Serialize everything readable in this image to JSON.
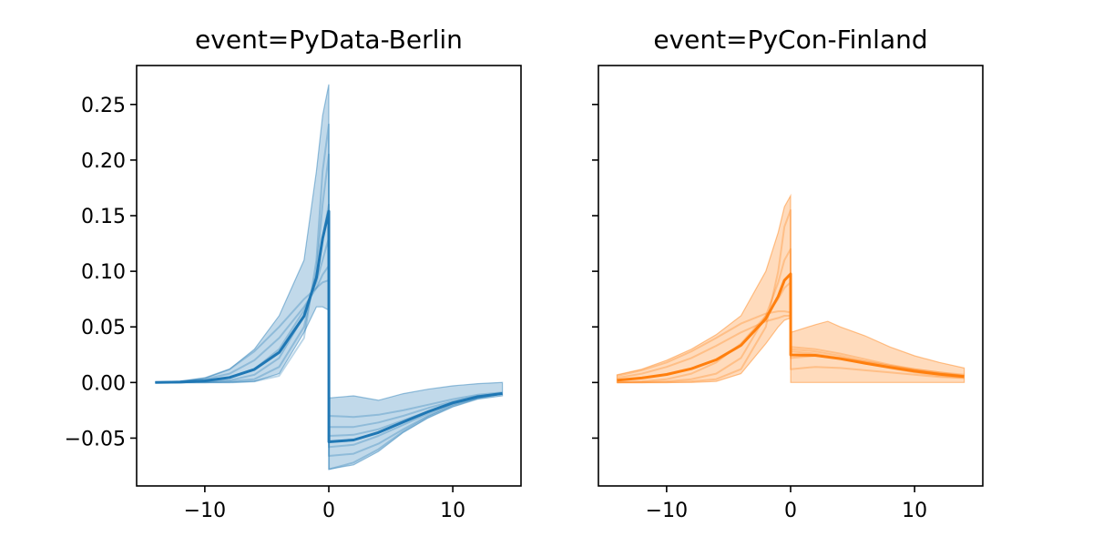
{
  "chart_data": [
    {
      "type": "line",
      "title": "event=PyData-Berlin",
      "xlabel": "",
      "ylabel": "",
      "xlim": [
        -15.5,
        15.5
      ],
      "ylim": [
        -0.093,
        0.285
      ],
      "xticks": [
        -10,
        0,
        10
      ],
      "xtick_labels": [
        "−10",
        "0",
        "10"
      ],
      "yticks": [
        -0.05,
        0.0,
        0.05,
        0.1,
        0.15,
        0.2,
        0.25
      ],
      "ytick_labels": [
        "−0.05",
        "0.00",
        "0.05",
        "0.10",
        "0.15",
        "0.20",
        "0.25"
      ],
      "color": "#1f77b4",
      "band": {
        "x": [
          -14,
          -12,
          -10,
          -8,
          -6,
          -4,
          -2,
          -1,
          -0.5,
          0,
          0.01,
          2,
          4,
          6,
          8,
          10,
          12,
          14
        ],
        "upper": [
          0.0,
          0.001,
          0.004,
          0.012,
          0.03,
          0.06,
          0.11,
          0.19,
          0.24,
          0.268,
          -0.014,
          -0.012,
          -0.016,
          -0.01,
          -0.006,
          -0.003,
          -0.001,
          0.0
        ],
        "lower": [
          0.0,
          0.0,
          0.0,
          0.0,
          0.001,
          0.008,
          0.045,
          0.068,
          0.068,
          0.065,
          -0.078,
          -0.074,
          -0.062,
          -0.045,
          -0.032,
          -0.022,
          -0.015,
          -0.012
        ]
      },
      "series": [
        {
          "x": [
            -14,
            -12,
            -10,
            -8,
            -6,
            -4,
            -2,
            -1,
            -0.5,
            0,
            0.01,
            2,
            4,
            6,
            8,
            10,
            12,
            14
          ],
          "values": [
            0.0,
            0.0,
            0.0,
            0.0,
            0.001,
            0.006,
            0.04,
            0.11,
            0.19,
            0.232,
            -0.078,
            -0.072,
            -0.06,
            -0.044,
            -0.031,
            -0.021,
            -0.014,
            -0.01
          ]
        },
        {
          "x": [
            -14,
            -12,
            -10,
            -8,
            -6,
            -4,
            -2,
            -1,
            -0.5,
            0,
            0.01,
            2,
            4,
            6,
            8,
            10,
            12,
            14
          ],
          "values": [
            0.0,
            0.0,
            0.0,
            0.001,
            0.003,
            0.014,
            0.05,
            0.1,
            0.16,
            0.205,
            -0.066,
            -0.064,
            -0.055,
            -0.042,
            -0.03,
            -0.02,
            -0.014,
            -0.01
          ]
        },
        {
          "x": [
            -14,
            -12,
            -10,
            -8,
            -6,
            -4,
            -2,
            -1,
            -0.5,
            0,
            0.01,
            2,
            4,
            6,
            8,
            10,
            12,
            14
          ],
          "values": [
            0.0,
            0.0,
            0.001,
            0.002,
            0.007,
            0.022,
            0.06,
            0.095,
            0.13,
            0.16,
            -0.058,
            -0.056,
            -0.048,
            -0.038,
            -0.028,
            -0.019,
            -0.013,
            -0.01
          ]
        },
        {
          "x": [
            -14,
            -12,
            -10,
            -8,
            -6,
            -4,
            -2,
            -1,
            -0.5,
            0,
            0.01,
            2,
            4,
            6,
            8,
            10,
            12,
            14
          ],
          "values": [
            0.0,
            0.0,
            0.001,
            0.004,
            0.012,
            0.03,
            0.065,
            0.09,
            0.11,
            0.13,
            -0.048,
            -0.047,
            -0.042,
            -0.034,
            -0.026,
            -0.018,
            -0.013,
            -0.01
          ]
        },
        {
          "x": [
            -14,
            -12,
            -10,
            -8,
            -6,
            -4,
            -2,
            -1,
            -0.5,
            0,
            0.01,
            2,
            4,
            6,
            8,
            10,
            12,
            14
          ],
          "values": [
            0.0,
            0.001,
            0.003,
            0.008,
            0.02,
            0.04,
            0.068,
            0.085,
            0.097,
            0.105,
            -0.04,
            -0.04,
            -0.036,
            -0.03,
            -0.023,
            -0.017,
            -0.012,
            -0.01
          ]
        },
        {
          "x": [
            -14,
            -12,
            -10,
            -8,
            -6,
            -4,
            -2,
            -1,
            -0.5,
            0,
            0.01,
            2,
            4,
            6,
            8,
            10,
            12,
            14
          ],
          "values": [
            0.0,
            0.001,
            0.004,
            0.012,
            0.028,
            0.05,
            0.075,
            0.085,
            0.09,
            0.092,
            -0.03,
            -0.031,
            -0.029,
            -0.025,
            -0.02,
            -0.015,
            -0.011,
            -0.009
          ]
        }
      ]
    },
    {
      "type": "line",
      "title": "event=PyCon-Finland",
      "xlabel": "",
      "ylabel": "",
      "xlim": [
        -15.5,
        15.5
      ],
      "ylim": [
        -0.093,
        0.285
      ],
      "xticks": [
        -10,
        0,
        10
      ],
      "xtick_labels": [
        "−10",
        "0",
        "10"
      ],
      "yticks": [
        -0.05,
        0.0,
        0.05,
        0.1,
        0.15,
        0.2,
        0.25
      ],
      "ytick_labels": [],
      "color": "#ff7f0e",
      "band": {
        "x": [
          -14,
          -12,
          -10,
          -8,
          -6,
          -4,
          -2,
          -1,
          -0.5,
          0,
          0.01,
          2,
          3,
          4,
          6,
          8,
          10,
          12,
          14
        ],
        "upper": [
          0.007,
          0.012,
          0.02,
          0.03,
          0.043,
          0.06,
          0.1,
          0.135,
          0.158,
          0.168,
          0.045,
          0.052,
          0.055,
          0.05,
          0.042,
          0.032,
          0.024,
          0.018,
          0.013
        ],
        "lower": [
          0.0,
          0.0,
          0.0,
          0.0,
          0.001,
          0.008,
          0.035,
          0.05,
          0.056,
          0.058,
          0.0,
          0.0,
          0.0,
          0.0,
          0.0,
          0.0,
          0.0,
          0.0,
          0.0
        ]
      },
      "series": [
        {
          "x": [
            -14,
            -12,
            -10,
            -8,
            -6,
            -4,
            -2,
            -1,
            -0.5,
            0,
            0.01,
            2,
            4,
            6,
            8,
            10,
            12,
            14
          ],
          "values": [
            0.0,
            0.0,
            0.0,
            0.001,
            0.003,
            0.012,
            0.05,
            0.1,
            0.14,
            0.155,
            0.028,
            0.026,
            0.022,
            0.017,
            0.013,
            0.009,
            0.006,
            0.004
          ]
        },
        {
          "x": [
            -14,
            -12,
            -10,
            -8,
            -6,
            -4,
            -2,
            -1,
            -0.5,
            0,
            0.01,
            2,
            4,
            6,
            8,
            10,
            12,
            14
          ],
          "values": [
            0.0,
            0.0,
            0.001,
            0.003,
            0.008,
            0.022,
            0.06,
            0.09,
            0.11,
            0.12,
            0.03,
            0.028,
            0.024,
            0.019,
            0.015,
            0.011,
            0.008,
            0.006
          ]
        },
        {
          "x": [
            -14,
            -12,
            -10,
            -8,
            -6,
            -4,
            -2,
            -1,
            -0.5,
            0,
            0.01,
            2,
            4,
            6,
            8,
            10,
            12,
            14
          ],
          "values": [
            0.0,
            0.001,
            0.003,
            0.008,
            0.018,
            0.035,
            0.06,
            0.075,
            0.085,
            0.09,
            0.032,
            0.03,
            0.026,
            0.021,
            0.016,
            0.012,
            0.009,
            0.006
          ]
        },
        {
          "x": [
            -14,
            -12,
            -10,
            -8,
            -6,
            -4,
            -2,
            -1,
            -0.5,
            0,
            0.01,
            2,
            4,
            6,
            8,
            10,
            12,
            14
          ],
          "values": [
            0.004,
            0.008,
            0.014,
            0.022,
            0.033,
            0.045,
            0.055,
            0.058,
            0.06,
            0.06,
            0.022,
            0.024,
            0.022,
            0.019,
            0.015,
            0.012,
            0.009,
            0.007
          ]
        },
        {
          "x": [
            -14,
            -12,
            -10,
            -8,
            -6,
            -4,
            -2,
            -1,
            -0.5,
            0,
            0.01,
            2,
            4,
            6,
            8,
            10,
            12,
            14
          ],
          "values": [
            0.006,
            0.011,
            0.018,
            0.028,
            0.04,
            0.053,
            0.062,
            0.064,
            0.064,
            0.063,
            0.012,
            0.014,
            0.013,
            0.011,
            0.009,
            0.007,
            0.005,
            0.004
          ]
        }
      ]
    }
  ]
}
